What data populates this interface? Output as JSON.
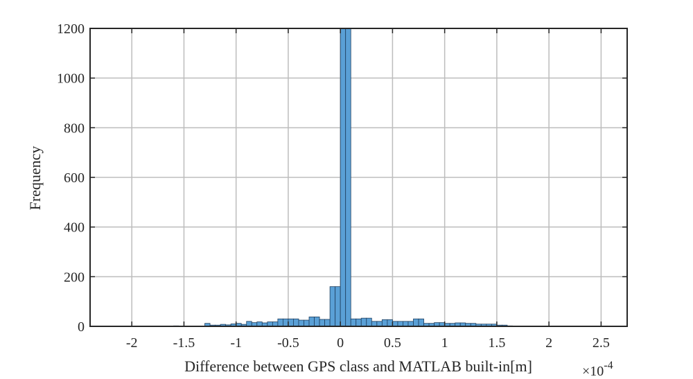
{
  "chart_data": {
    "type": "bar",
    "xlabel": "Difference between GPS class and MATLAB built-in[m]",
    "ylabel": "Frequency",
    "x_exponent": {
      "base": "×10",
      "power": "-4"
    },
    "xlim": [
      -2.4,
      2.75
    ],
    "ylim": [
      0,
      1200
    ],
    "xticks": [
      -2,
      -1.5,
      -1,
      -0.5,
      0,
      0.5,
      1,
      1.5,
      2,
      2.5
    ],
    "xtick_labels": [
      "-2",
      "-1.5",
      "-1",
      "-0.5",
      "0",
      "0.5",
      "1",
      "1.5",
      "2",
      "2.5"
    ],
    "yticks": [
      0,
      200,
      400,
      600,
      800,
      1000,
      1200
    ],
    "ytick_labels": [
      "0",
      "200",
      "400",
      "600",
      "800",
      "1000",
      "1200"
    ],
    "grid": true,
    "bar_color": "#5aa0d6",
    "bar_edge_color": "#1f3f5f",
    "bin_width": 0.05,
    "bins": [
      {
        "start": -1.6,
        "count": 2
      },
      {
        "start": -1.55,
        "count": 1
      },
      {
        "start": -1.3,
        "count": 12
      },
      {
        "start": -1.25,
        "count": 5
      },
      {
        "start": -1.2,
        "count": 5
      },
      {
        "start": -1.15,
        "count": 8
      },
      {
        "start": -1.1,
        "count": 6
      },
      {
        "start": -1.05,
        "count": 10
      },
      {
        "start": -1.0,
        "count": 12
      },
      {
        "start": -0.95,
        "count": 8
      },
      {
        "start": -0.9,
        "count": 20
      },
      {
        "start": -0.85,
        "count": 15
      },
      {
        "start": -0.8,
        "count": 18
      },
      {
        "start": -0.75,
        "count": 14
      },
      {
        "start": -0.7,
        "count": 18
      },
      {
        "start": -0.65,
        "count": 18
      },
      {
        "start": -0.6,
        "count": 30
      },
      {
        "start": -0.55,
        "count": 30
      },
      {
        "start": -0.5,
        "count": 30
      },
      {
        "start": -0.45,
        "count": 30
      },
      {
        "start": -0.4,
        "count": 25
      },
      {
        "start": -0.35,
        "count": 25
      },
      {
        "start": -0.3,
        "count": 38
      },
      {
        "start": -0.25,
        "count": 38
      },
      {
        "start": -0.2,
        "count": 28
      },
      {
        "start": -0.15,
        "count": 28
      },
      {
        "start": -0.1,
        "count": 160
      },
      {
        "start": -0.05,
        "count": 160
      },
      {
        "start": 0.0,
        "count": 1200
      },
      {
        "start": 0.05,
        "count": 1200
      },
      {
        "start": 0.1,
        "count": 30
      },
      {
        "start": 0.15,
        "count": 30
      },
      {
        "start": 0.2,
        "count": 33
      },
      {
        "start": 0.25,
        "count": 33
      },
      {
        "start": 0.3,
        "count": 20
      },
      {
        "start": 0.35,
        "count": 20
      },
      {
        "start": 0.4,
        "count": 27
      },
      {
        "start": 0.45,
        "count": 27
      },
      {
        "start": 0.5,
        "count": 20
      },
      {
        "start": 0.55,
        "count": 20
      },
      {
        "start": 0.6,
        "count": 20
      },
      {
        "start": 0.65,
        "count": 20
      },
      {
        "start": 0.7,
        "count": 30
      },
      {
        "start": 0.75,
        "count": 30
      },
      {
        "start": 0.8,
        "count": 12
      },
      {
        "start": 0.85,
        "count": 12
      },
      {
        "start": 0.9,
        "count": 15
      },
      {
        "start": 0.95,
        "count": 15
      },
      {
        "start": 1.0,
        "count": 12
      },
      {
        "start": 1.05,
        "count": 12
      },
      {
        "start": 1.1,
        "count": 14
      },
      {
        "start": 1.15,
        "count": 14
      },
      {
        "start": 1.2,
        "count": 12
      },
      {
        "start": 1.25,
        "count": 12
      },
      {
        "start": 1.3,
        "count": 9
      },
      {
        "start": 1.35,
        "count": 9
      },
      {
        "start": 1.4,
        "count": 9
      },
      {
        "start": 1.45,
        "count": 9
      },
      {
        "start": 1.5,
        "count": 5
      },
      {
        "start": 1.55,
        "count": 5
      },
      {
        "start": 1.6,
        "count": 2
      },
      {
        "start": 1.7,
        "count": 1
      },
      {
        "start": 1.8,
        "count": 1
      },
      {
        "start": 2.0,
        "count": 1
      },
      {
        "start": 2.3,
        "count": 1
      }
    ]
  }
}
